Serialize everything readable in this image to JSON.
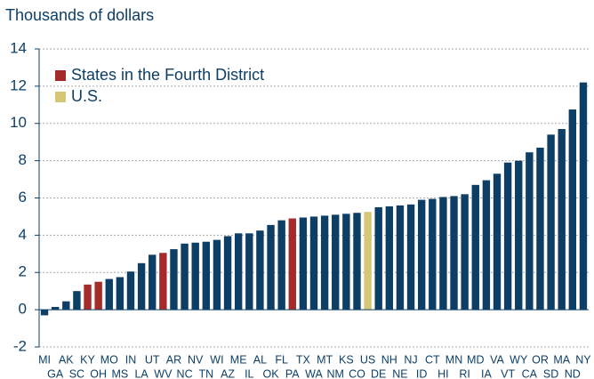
{
  "chart_data": {
    "type": "bar",
    "y_label": "Thousands of dollars",
    "categories": [
      "MI",
      "GA",
      "AK",
      "SC",
      "KY",
      "OH",
      "MO",
      "MS",
      "IN",
      "LA",
      "UT",
      "WV",
      "AR",
      "NC",
      "NV",
      "TN",
      "WI",
      "AZ",
      "ME",
      "IL",
      "AL",
      "OK",
      "FL",
      "PA",
      "TX",
      "WA",
      "MT",
      "NM",
      "KS",
      "CO",
      "US",
      "DE",
      "NH",
      "NE",
      "NJ",
      "ID",
      "CT",
      "HI",
      "MN",
      "RI",
      "MD",
      "IA",
      "VA",
      "VT",
      "WY",
      "CA",
      "OR",
      "SD",
      "MA",
      "ND",
      "NY"
    ],
    "values": [
      -0.3,
      0.15,
      0.45,
      1.0,
      1.35,
      1.5,
      1.65,
      1.75,
      2.05,
      2.5,
      2.95,
      3.05,
      3.25,
      3.55,
      3.6,
      3.65,
      3.75,
      3.95,
      4.1,
      4.1,
      4.25,
      4.55,
      4.8,
      4.9,
      4.95,
      5.0,
      5.05,
      5.1,
      5.15,
      5.2,
      5.25,
      5.5,
      5.55,
      5.6,
      5.65,
      5.9,
      5.95,
      6.05,
      6.1,
      6.2,
      6.7,
      6.95,
      7.3,
      7.9,
      8.0,
      8.45,
      8.7,
      9.4,
      9.7,
      10.75,
      12.2
    ],
    "colors": [
      "#0d3f66",
      "#0d3f66",
      "#0d3f66",
      "#0d3f66",
      "#a52a2a",
      "#a52a2a",
      "#0d3f66",
      "#0d3f66",
      "#0d3f66",
      "#0d3f66",
      "#0d3f66",
      "#a52a2a",
      "#0d3f66",
      "#0d3f66",
      "#0d3f66",
      "#0d3f66",
      "#0d3f66",
      "#0d3f66",
      "#0d3f66",
      "#0d3f66",
      "#0d3f66",
      "#0d3f66",
      "#0d3f66",
      "#a52a2a",
      "#0d3f66",
      "#0d3f66",
      "#0d3f66",
      "#0d3f66",
      "#0d3f66",
      "#0d3f66",
      "#d6c777",
      "#0d3f66",
      "#0d3f66",
      "#0d3f66",
      "#0d3f66",
      "#0d3f66",
      "#0d3f66",
      "#0d3f66",
      "#0d3f66",
      "#0d3f66",
      "#0d3f66",
      "#0d3f66",
      "#0d3f66",
      "#0d3f66",
      "#0d3f66",
      "#0d3f66",
      "#0d3f66",
      "#0d3f66",
      "#0d3f66",
      "#0d3f66",
      "#0d3f66"
    ],
    "legend": [
      {
        "name": "States in the Fourth District",
        "color": "#a52a2a"
      },
      {
        "name": "U.S.",
        "color": "#d6c777"
      }
    ],
    "ylim": [
      -2,
      14
    ],
    "yticks": [
      -2,
      0,
      2,
      4,
      6,
      8,
      10,
      12,
      14
    ],
    "grid": true
  }
}
